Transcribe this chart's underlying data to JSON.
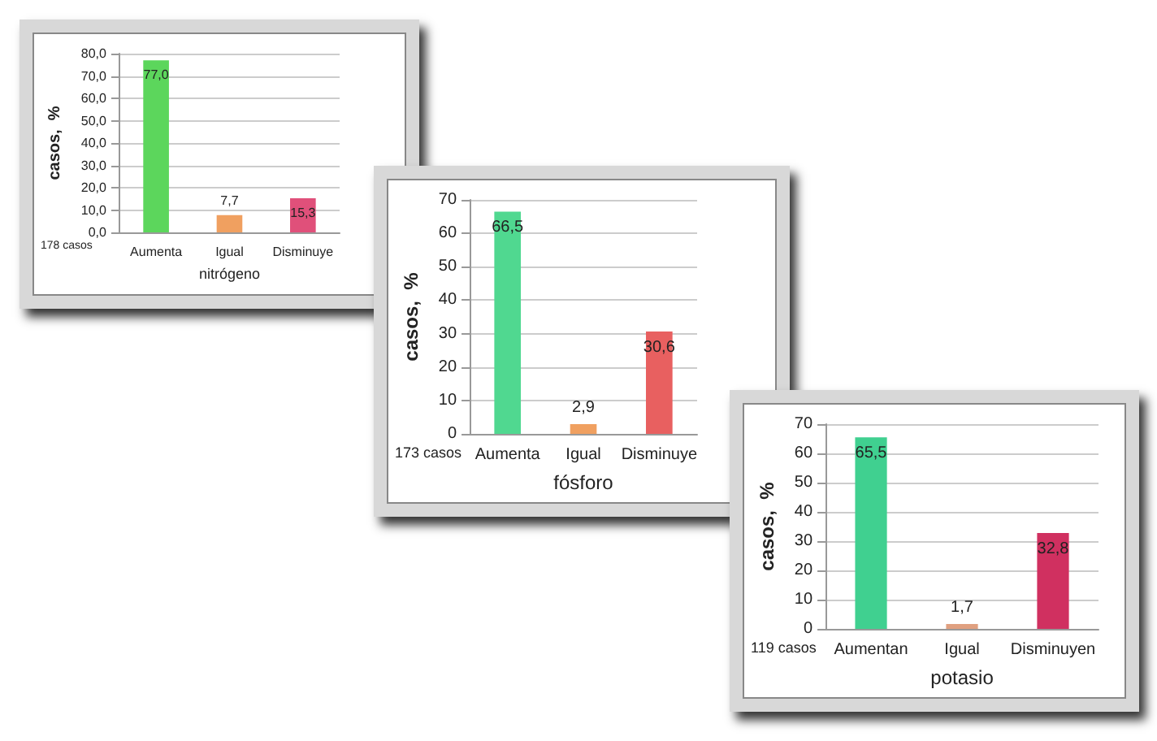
{
  "chart_data": [
    {
      "type": "bar",
      "categories": [
        "Aumenta",
        "Igual",
        "Disminuye"
      ],
      "values": [
        77.0,
        7.7,
        15.3
      ],
      "colors": [
        "#5cd65c",
        "#f0a060",
        "#e0507a"
      ],
      "value_labels": [
        "77,0",
        "7,7",
        "15,3"
      ],
      "xlabel": "nitrógeno",
      "ylabel": "casos,  %",
      "ylim": [
        0,
        80
      ],
      "yticks": [
        {
          "value": 0,
          "label": "0,0"
        },
        {
          "value": 10,
          "label": "10,0"
        },
        {
          "value": 20,
          "label": "20,0"
        },
        {
          "value": 30,
          "label": "30,0"
        },
        {
          "value": 40,
          "label": "40,0"
        },
        {
          "value": 50,
          "label": "50,0"
        },
        {
          "value": 60,
          "label": "60,0"
        },
        {
          "value": 70,
          "label": "70,0"
        },
        {
          "value": 80,
          "label": "80,0"
        }
      ],
      "grid": "y",
      "annotations": [
        "178 casos"
      ]
    },
    {
      "type": "bar",
      "categories": [
        "Aumenta",
        "Igual",
        "Disminuye"
      ],
      "values": [
        66.5,
        2.9,
        30.6
      ],
      "colors": [
        "#50d890",
        "#f0a060",
        "#e86060"
      ],
      "value_labels": [
        "66,5",
        "2,9",
        "30,6"
      ],
      "xlabel": "fósforo",
      "ylabel": "casos,  %",
      "ylim": [
        0,
        70
      ],
      "yticks": [
        0,
        10,
        20,
        30,
        40,
        50,
        60,
        70
      ],
      "grid": "y",
      "annotations": [
        "173 casos"
      ]
    },
    {
      "type": "bar",
      "categories": [
        "Aumentan",
        "Igual",
        "Disminuyen"
      ],
      "values": [
        65.5,
        1.7,
        32.8
      ],
      "colors": [
        "#40d090",
        "#e0a080",
        "#d03060"
      ],
      "value_labels": [
        "65,5",
        "1,7",
        "32,8"
      ],
      "xlabel": "potasio",
      "ylabel": "casos,  %",
      "ylim": [
        0,
        70
      ],
      "yticks": [
        0,
        10,
        20,
        30,
        40,
        50,
        60,
        70
      ],
      "grid": "y",
      "annotations": [
        "119 casos"
      ]
    }
  ]
}
